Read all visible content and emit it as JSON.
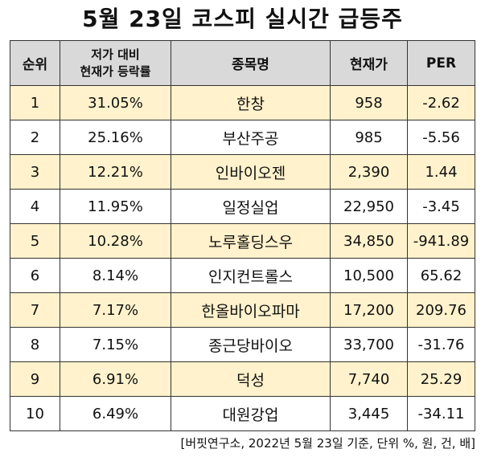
{
  "title": "5월 23일 코스피 실시간 급등주",
  "headers": {
    "rank": "순위",
    "rate_line1": "저가 대비",
    "rate_line2": "현재가 등락률",
    "name": "종목명",
    "price": "현재가",
    "per": "PER"
  },
  "rows": [
    {
      "rank": "1",
      "rate": "31.05%",
      "name": "한창",
      "price": "958",
      "per": "-2.62"
    },
    {
      "rank": "2",
      "rate": "25.16%",
      "name": "부산주공",
      "price": "985",
      "per": "-5.56"
    },
    {
      "rank": "3",
      "rate": "12.21%",
      "name": "인바이오젠",
      "price": "2,390",
      "per": "1.44"
    },
    {
      "rank": "4",
      "rate": "11.95%",
      "name": "일정실업",
      "price": "22,950",
      "per": "-3.45"
    },
    {
      "rank": "5",
      "rate": "10.28%",
      "name": "노루홀딩스우",
      "price": "34,850",
      "per": "-941.89"
    },
    {
      "rank": "6",
      "rate": "8.14%",
      "name": "인지컨트롤스",
      "price": "10,500",
      "per": "65.62"
    },
    {
      "rank": "7",
      "rate": "7.17%",
      "name": "한올바이오파마",
      "price": "17,200",
      "per": "209.76"
    },
    {
      "rank": "8",
      "rate": "7.15%",
      "name": "종근당바이오",
      "price": "33,700",
      "per": "-31.76"
    },
    {
      "rank": "9",
      "rate": "6.91%",
      "name": "덕성",
      "price": "7,740",
      "per": "25.29"
    },
    {
      "rank": "10",
      "rate": "6.49%",
      "name": "대원강업",
      "price": "3,445",
      "per": "-34.11"
    }
  ],
  "footnote": "[버핏연구소, 2022년 5월 23일 기준, 단위 %, 원, 건, 배]",
  "colors": {
    "header_bg": "#d9d9d9",
    "highlight_row": "#fff2cc",
    "border": "#333333"
  }
}
